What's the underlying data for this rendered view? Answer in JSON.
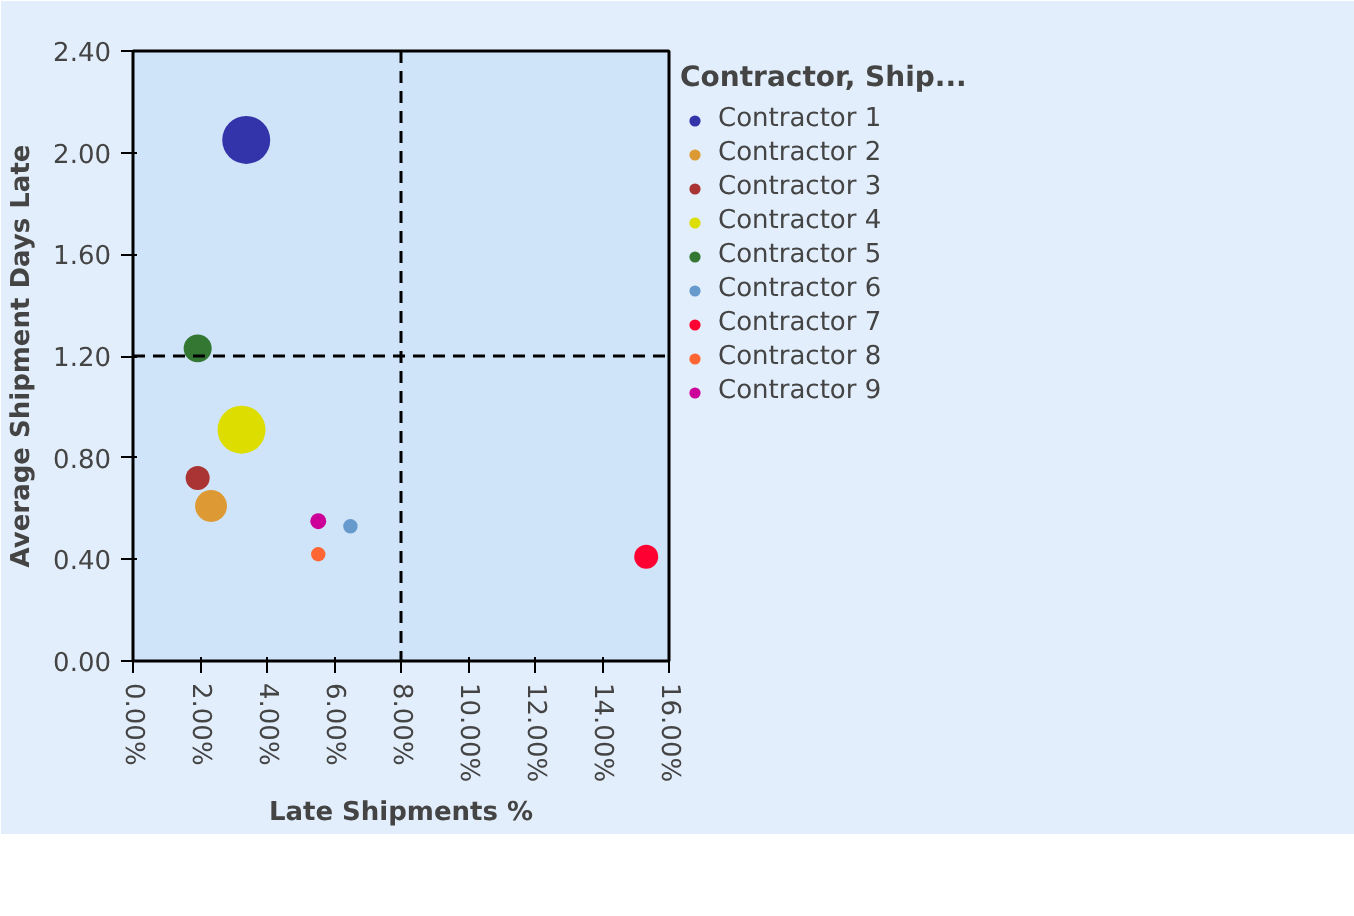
{
  "chart_data": {
    "type": "bubble",
    "xlabel": "Late Shipments %",
    "ylabel": "Average Shipment Days Late",
    "legend_title": "Contractor, Ship...",
    "legend": "right",
    "grid": false,
    "xlim": [
      0,
      16
    ],
    "ylim": [
      0,
      2.4
    ],
    "xticks": [
      {
        "value": 0,
        "label": "0.00%"
      },
      {
        "value": 2,
        "label": "2.00%"
      },
      {
        "value": 4,
        "label": "4.00%"
      },
      {
        "value": 6,
        "label": "6.00%"
      },
      {
        "value": 8,
        "label": "8.00%"
      },
      {
        "value": 10,
        "label": "10.00%"
      },
      {
        "value": 12,
        "label": "12.00%"
      },
      {
        "value": 14,
        "label": "14.00%"
      },
      {
        "value": 16,
        "label": "16.00%"
      }
    ],
    "yticks": [
      {
        "value": 0,
        "label": "0.00"
      },
      {
        "value": 0.4,
        "label": "0.40"
      },
      {
        "value": 0.8,
        "label": "0.80"
      },
      {
        "value": 1.2,
        "label": "1.20"
      },
      {
        "value": 1.6,
        "label": "1.60"
      },
      {
        "value": 2.0,
        "label": "2.00"
      },
      {
        "value": 2.4,
        "label": "2.40"
      }
    ],
    "ref_lines": [
      {
        "axis": "x",
        "value": 8,
        "color": "#000000",
        "line_style": "dashed"
      },
      {
        "axis": "y",
        "value": 1.2,
        "color": "#000000",
        "line_style": "dashed"
      }
    ],
    "series": [
      {
        "name": "Contractor 1",
        "color": "#3333aa",
        "x": [
          3.38
        ],
        "values": [
          2.05
        ],
        "sizes": [
          1
        ]
      },
      {
        "name": "Contractor 2",
        "color": "#dd9933",
        "x": [
          2.33
        ],
        "values": [
          0.61
        ],
        "sizes": [
          0.44
        ]
      },
      {
        "name": "Contractor 3",
        "color": "#aa3333",
        "x": [
          1.93
        ],
        "values": [
          0.72
        ],
        "sizes": [
          0.25
        ]
      },
      {
        "name": "Contractor 4",
        "color": "#dddd00",
        "x": [
          3.24
        ],
        "values": [
          0.91
        ],
        "sizes": [
          1
        ]
      },
      {
        "name": "Contractor 5",
        "color": "#337733",
        "x": [
          1.93
        ],
        "values": [
          1.23
        ],
        "sizes": [
          0.34
        ]
      },
      {
        "name": "Contractor 6",
        "color": "#6699cc",
        "x": [
          6.49
        ],
        "values": [
          0.53
        ],
        "sizes": [
          0.09
        ]
      },
      {
        "name": "Contractor 7",
        "color": "#ff0033",
        "x": [
          15.32
        ],
        "values": [
          0.41
        ],
        "sizes": [
          0.25
        ]
      },
      {
        "name": "Contractor 8",
        "color": "#ff6633",
        "x": [
          5.53
        ],
        "values": [
          0.42
        ],
        "sizes": [
          0.09
        ]
      },
      {
        "name": "Contractor 9",
        "color": "#cc0099",
        "x": [
          5.53
        ],
        "values": [
          0.55
        ],
        "sizes": [
          0.11
        ]
      }
    ]
  }
}
